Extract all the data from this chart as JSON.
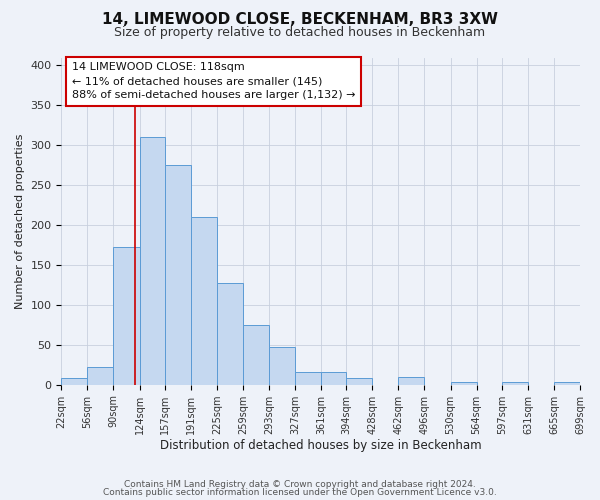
{
  "title": "14, LIMEWOOD CLOSE, BECKENHAM, BR3 3XW",
  "subtitle": "Size of property relative to detached houses in Beckenham",
  "xlabel": "Distribution of detached houses by size in Beckenham",
  "ylabel": "Number of detached properties",
  "footnote1": "Contains HM Land Registry data © Crown copyright and database right 2024.",
  "footnote2": "Contains public sector information licensed under the Open Government Licence v3.0.",
  "bin_labels": [
    "22sqm",
    "56sqm",
    "90sqm",
    "124sqm",
    "157sqm",
    "191sqm",
    "225sqm",
    "259sqm",
    "293sqm",
    "327sqm",
    "361sqm",
    "394sqm",
    "428sqm",
    "462sqm",
    "496sqm",
    "530sqm",
    "564sqm",
    "597sqm",
    "631sqm",
    "665sqm",
    "699sqm"
  ],
  "bin_edges": [
    22,
    56,
    90,
    124,
    157,
    191,
    225,
    259,
    293,
    327,
    361,
    394,
    428,
    462,
    496,
    530,
    564,
    597,
    631,
    665,
    699
  ],
  "bar_heights": [
    8,
    22,
    172,
    310,
    275,
    210,
    127,
    75,
    47,
    16,
    16,
    9,
    0,
    10,
    0,
    3,
    0,
    3,
    0,
    3
  ],
  "bar_color": "#c5d8f0",
  "bar_edge_color": "#5b9bd5",
  "property_line_x": 118,
  "ylim": [
    0,
    410
  ],
  "yticks": [
    0,
    50,
    100,
    150,
    200,
    250,
    300,
    350,
    400
  ],
  "annotation_line1": "14 LIMEWOOD CLOSE: 118sqm",
  "annotation_line2": "← 11% of detached houses are smaller (145)",
  "annotation_line3": "88% of semi-detached houses are larger (1,132) →",
  "annotation_box_color": "#ffffff",
  "annotation_box_edgecolor": "#cc0000",
  "bg_color": "#eef2f9"
}
